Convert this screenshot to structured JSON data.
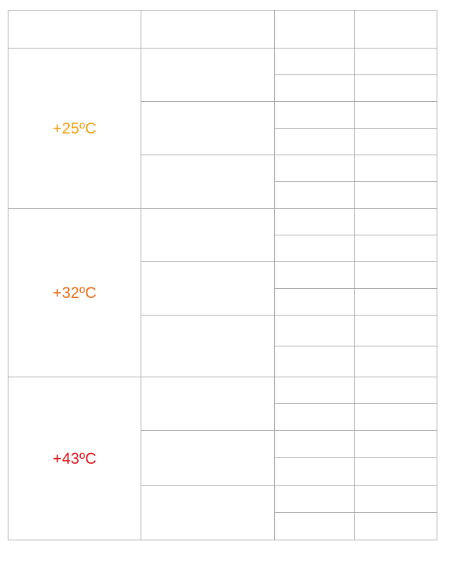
{
  "groups": [
    {
      "label": "+25ºC",
      "color": "#f0a012"
    },
    {
      "label": "+32ºC",
      "color": "#ec6d19"
    },
    {
      "label": "+43ºC",
      "color": "#e3131c"
    }
  ]
}
